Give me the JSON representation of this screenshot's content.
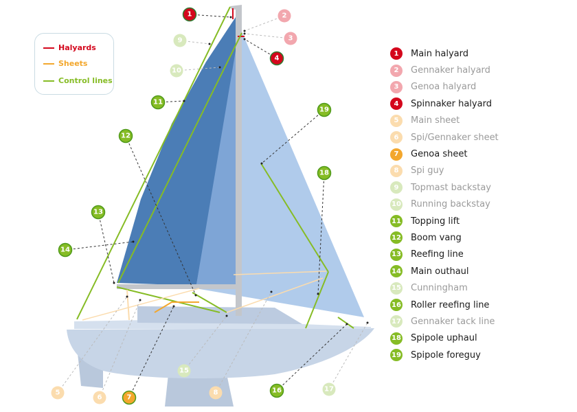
{
  "colors": {
    "halyard": "#d4071c",
    "halyard_light": "#f2a7ae",
    "sheet": "#f3a72d",
    "sheet_light": "#fbdcae",
    "control": "#86bc25",
    "control_light": "#d8e9bd",
    "main_sail": "#4b7db6",
    "genoa": "#b0cbeb",
    "overlap": "#7ea5d6",
    "hull": "#c7d5e7",
    "mast": "#c3c6cb"
  },
  "legend": [
    {
      "label": "Halyards",
      "color": "#d4071c"
    },
    {
      "label": "Sheets",
      "color": "#f3a72d"
    },
    {
      "label": "Control lines",
      "color": "#86bc25"
    }
  ],
  "items": [
    {
      "num": "1",
      "label": "Main halyard",
      "active": true,
      "group": "halyard"
    },
    {
      "num": "2",
      "label": "Gennaker halyard",
      "active": false,
      "group": "halyard"
    },
    {
      "num": "3",
      "label": "Genoa halyard",
      "active": false,
      "group": "halyard"
    },
    {
      "num": "4",
      "label": "Spinnaker halyard",
      "active": true,
      "group": "halyard"
    },
    {
      "num": "5",
      "label": "Main sheet",
      "active": false,
      "group": "sheet"
    },
    {
      "num": "6",
      "label": "Spi/Gennaker sheet",
      "active": false,
      "group": "sheet"
    },
    {
      "num": "7",
      "label": "Genoa sheet",
      "active": true,
      "group": "sheet"
    },
    {
      "num": "8",
      "label": "Spi guy",
      "active": false,
      "group": "sheet"
    },
    {
      "num": "9",
      "label": "Topmast backstay",
      "active": false,
      "group": "control"
    },
    {
      "num": "10",
      "label": "Running backstay",
      "active": false,
      "group": "control"
    },
    {
      "num": "11",
      "label": "Topping lift",
      "active": true,
      "group": "control"
    },
    {
      "num": "12",
      "label": "Boom vang",
      "active": true,
      "group": "control"
    },
    {
      "num": "13",
      "label": "Reefing line",
      "active": true,
      "group": "control"
    },
    {
      "num": "14",
      "label": "Main outhaul",
      "active": true,
      "group": "control"
    },
    {
      "num": "15",
      "label": "Cunningham",
      "active": false,
      "group": "control"
    },
    {
      "num": "16",
      "label": "Roller reefing line",
      "active": true,
      "group": "control"
    },
    {
      "num": "17",
      "label": "Gennaker tack line",
      "active": false,
      "group": "control"
    },
    {
      "num": "18",
      "label": "Spipole uphaul",
      "active": true,
      "group": "control"
    },
    {
      "num": "19",
      "label": "Spipole foreguy",
      "active": true,
      "group": "control"
    }
  ]
}
